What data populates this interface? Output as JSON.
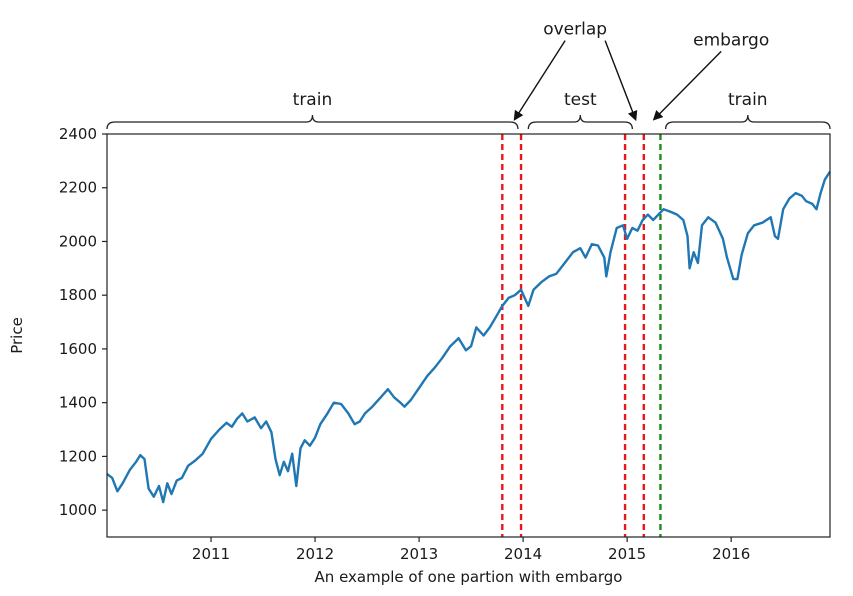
{
  "chart_data": {
    "type": "line",
    "title": "",
    "xlabel": "An example of one partion with embargo",
    "ylabel": "Price",
    "xlim": [
      2010.0,
      2016.95
    ],
    "ylim": [
      900,
      2400
    ],
    "x_ticks": [
      2011,
      2012,
      2013,
      2014,
      2015,
      2016
    ],
    "x_tick_labels": [
      "2011",
      "2012",
      "2013",
      "2014",
      "2015",
      "2016"
    ],
    "y_ticks": [
      1000,
      1200,
      1400,
      1600,
      1800,
      2000,
      2200,
      2400
    ],
    "y_tick_labels": [
      "1000",
      "1200",
      "1400",
      "1600",
      "1800",
      "2000",
      "2200",
      "2400"
    ],
    "grid": false,
    "series": [
      {
        "color": "#1f77b4",
        "points": [
          [
            2010.0,
            1135
          ],
          [
            2010.05,
            1120
          ],
          [
            2010.1,
            1070
          ],
          [
            2010.15,
            1100
          ],
          [
            2010.22,
            1150
          ],
          [
            2010.28,
            1180
          ],
          [
            2010.32,
            1205
          ],
          [
            2010.36,
            1190
          ],
          [
            2010.4,
            1080
          ],
          [
            2010.45,
            1050
          ],
          [
            2010.5,
            1090
          ],
          [
            2010.54,
            1030
          ],
          [
            2010.58,
            1100
          ],
          [
            2010.62,
            1060
          ],
          [
            2010.67,
            1110
          ],
          [
            2010.72,
            1120
          ],
          [
            2010.78,
            1165
          ],
          [
            2010.85,
            1185
          ],
          [
            2010.92,
            1210
          ],
          [
            2011.0,
            1265
          ],
          [
            2011.08,
            1300
          ],
          [
            2011.15,
            1325
          ],
          [
            2011.2,
            1310
          ],
          [
            2011.25,
            1340
          ],
          [
            2011.3,
            1360
          ],
          [
            2011.35,
            1330
          ],
          [
            2011.42,
            1345
          ],
          [
            2011.48,
            1305
          ],
          [
            2011.53,
            1330
          ],
          [
            2011.58,
            1290
          ],
          [
            2011.62,
            1190
          ],
          [
            2011.66,
            1130
          ],
          [
            2011.7,
            1180
          ],
          [
            2011.74,
            1145
          ],
          [
            2011.78,
            1210
          ],
          [
            2011.82,
            1090
          ],
          [
            2011.86,
            1230
          ],
          [
            2011.9,
            1260
          ],
          [
            2011.95,
            1240
          ],
          [
            2012.0,
            1270
          ],
          [
            2012.05,
            1320
          ],
          [
            2012.12,
            1360
          ],
          [
            2012.18,
            1400
          ],
          [
            2012.25,
            1395
          ],
          [
            2012.32,
            1360
          ],
          [
            2012.38,
            1320
          ],
          [
            2012.43,
            1330
          ],
          [
            2012.48,
            1360
          ],
          [
            2012.55,
            1385
          ],
          [
            2012.62,
            1415
          ],
          [
            2012.7,
            1450
          ],
          [
            2012.76,
            1420
          ],
          [
            2012.82,
            1400
          ],
          [
            2012.86,
            1385
          ],
          [
            2012.92,
            1410
          ],
          [
            2013.0,
            1455
          ],
          [
            2013.08,
            1500
          ],
          [
            2013.15,
            1530
          ],
          [
            2013.22,
            1565
          ],
          [
            2013.3,
            1610
          ],
          [
            2013.38,
            1640
          ],
          [
            2013.45,
            1595
          ],
          [
            2013.5,
            1610
          ],
          [
            2013.55,
            1680
          ],
          [
            2013.62,
            1650
          ],
          [
            2013.68,
            1680
          ],
          [
            2013.74,
            1720
          ],
          [
            2013.8,
            1760
          ],
          [
            2013.86,
            1790
          ],
          [
            2013.92,
            1800
          ],
          [
            2013.98,
            1820
          ],
          [
            2014.05,
            1760
          ],
          [
            2014.1,
            1820
          ],
          [
            2014.18,
            1850
          ],
          [
            2014.25,
            1870
          ],
          [
            2014.32,
            1880
          ],
          [
            2014.4,
            1920
          ],
          [
            2014.48,
            1960
          ],
          [
            2014.55,
            1975
          ],
          [
            2014.6,
            1940
          ],
          [
            2014.66,
            1990
          ],
          [
            2014.72,
            1985
          ],
          [
            2014.78,
            1940
          ],
          [
            2014.8,
            1870
          ],
          [
            2014.84,
            1960
          ],
          [
            2014.9,
            2050
          ],
          [
            2014.96,
            2060
          ],
          [
            2015.0,
            2010
          ],
          [
            2015.05,
            2050
          ],
          [
            2015.1,
            2040
          ],
          [
            2015.15,
            2080
          ],
          [
            2015.2,
            2100
          ],
          [
            2015.25,
            2080
          ],
          [
            2015.3,
            2100
          ],
          [
            2015.35,
            2120
          ],
          [
            2015.42,
            2110
          ],
          [
            2015.48,
            2100
          ],
          [
            2015.54,
            2080
          ],
          [
            2015.58,
            2020
          ],
          [
            2015.6,
            1900
          ],
          [
            2015.64,
            1960
          ],
          [
            2015.68,
            1920
          ],
          [
            2015.72,
            2060
          ],
          [
            2015.78,
            2090
          ],
          [
            2015.85,
            2070
          ],
          [
            2015.92,
            2010
          ],
          [
            2015.96,
            1940
          ],
          [
            2016.02,
            1860
          ],
          [
            2016.06,
            1860
          ],
          [
            2016.1,
            1950
          ],
          [
            2016.16,
            2030
          ],
          [
            2016.22,
            2060
          ],
          [
            2016.3,
            2070
          ],
          [
            2016.38,
            2090
          ],
          [
            2016.42,
            2020
          ],
          [
            2016.45,
            2010
          ],
          [
            2016.5,
            2120
          ],
          [
            2016.56,
            2160
          ],
          [
            2016.62,
            2180
          ],
          [
            2016.68,
            2170
          ],
          [
            2016.72,
            2150
          ],
          [
            2016.78,
            2140
          ],
          [
            2016.82,
            2120
          ],
          [
            2016.86,
            2180
          ],
          [
            2016.9,
            2230
          ],
          [
            2016.95,
            2260
          ]
        ]
      }
    ],
    "vertical_lines": [
      {
        "x": 2013.8,
        "color": "#e8171a",
        "style": "dashed"
      },
      {
        "x": 2013.98,
        "color": "#e8171a",
        "style": "dashed"
      },
      {
        "x": 2014.98,
        "color": "#e8171a",
        "style": "dashed"
      },
      {
        "x": 2015.16,
        "color": "#e8171a",
        "style": "dashed"
      },
      {
        "x": 2015.32,
        "color": "#1e8c1e",
        "style": "dashed"
      }
    ],
    "braces": [
      {
        "from": 2010.0,
        "to": 2013.95,
        "label": "train"
      },
      {
        "from": 2014.05,
        "to": 2015.05,
        "label": "test"
      },
      {
        "from": 2015.37,
        "to": 2016.95,
        "label": "train"
      }
    ],
    "arrow_annotations": [
      {
        "label": "overlap",
        "text_x": 2014.5,
        "text_y": 2770,
        "targets": [
          [
            2013.92,
            2455
          ],
          [
            2015.08,
            2455
          ]
        ]
      },
      {
        "label": "embargo",
        "text_x": 2016.0,
        "text_y": 2730,
        "targets": [
          [
            2015.26,
            2455
          ]
        ]
      }
    ]
  }
}
